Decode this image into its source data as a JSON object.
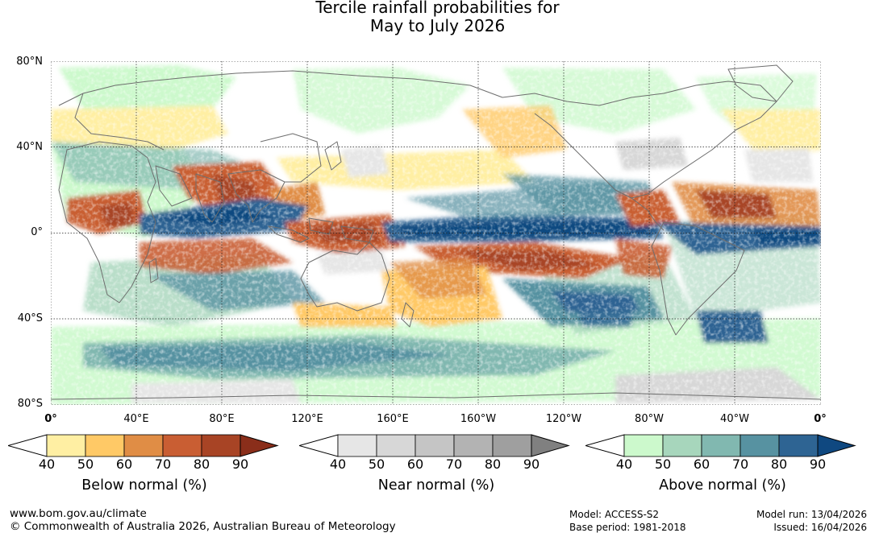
{
  "title": {
    "line1": "Tercile rainfall probabilities for",
    "line2": "May to July 2026"
  },
  "map": {
    "lat_labels": [
      "80°N",
      "40°N",
      "0°",
      "40°S",
      "80°S"
    ],
    "lon_labels": [
      "0°",
      "40°E",
      "80°E",
      "120°E",
      "160°E",
      "160°W",
      "120°W",
      "80°W",
      "40°W",
      "0°"
    ],
    "lat_values": [
      80,
      40,
      0,
      -40,
      -80
    ],
    "lon_values": [
      0,
      40,
      80,
      120,
      160,
      200,
      240,
      280,
      320,
      360
    ]
  },
  "legends": [
    {
      "name": "below",
      "title": "Below normal (%)",
      "ticks": [
        "40",
        "50",
        "60",
        "70",
        "80",
        "90"
      ],
      "colors": [
        "#ffefa3",
        "#ffc966",
        "#e08d45",
        "#c95e33",
        "#a84425",
        "#8a2e1a"
      ]
    },
    {
      "name": "near",
      "title": "Near normal (%)",
      "ticks": [
        "40",
        "50",
        "60",
        "70",
        "80",
        "90"
      ],
      "colors": [
        "#e6e6e6",
        "#d7d7d7",
        "#c5c5c5",
        "#b3b3b3",
        "#9f9f9f",
        "#808080"
      ]
    },
    {
      "name": "above",
      "title": "Above normal (%)",
      "ticks": [
        "40",
        "50",
        "60",
        "70",
        "80",
        "90"
      ],
      "colors": [
        "#ccf9cc",
        "#a7d6bc",
        "#81b8b0",
        "#5792a1",
        "#2e6493",
        "#0f4880"
      ]
    }
  ],
  "footer": {
    "url": "www.bom.gov.au/climate",
    "copyright": "© Commonwealth of Australia 2026, Australian Bureau of Meteorology",
    "model": "Model: ACCESS-S2",
    "base_period": "Base period: 1981-2018",
    "model_run": "Model run: 13/04/2026",
    "issued": "Issued: 16/04/2026"
  }
}
